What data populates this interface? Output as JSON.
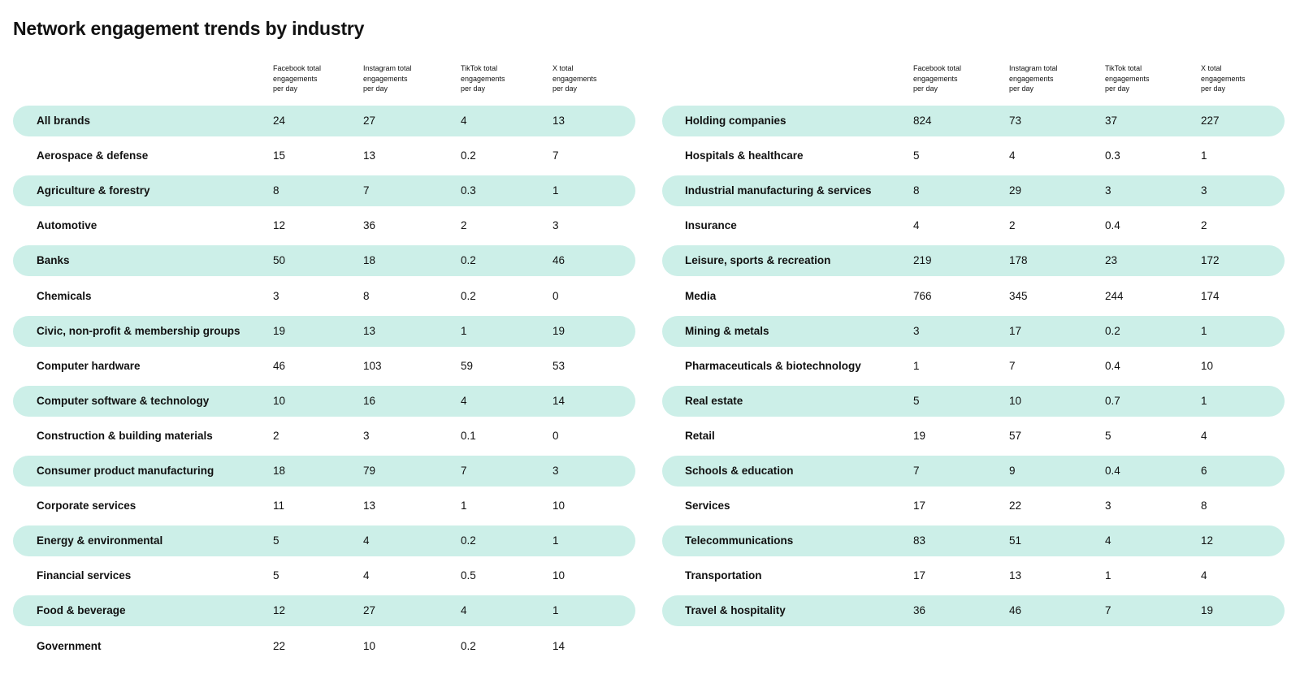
{
  "title": "Network engagement trends by industry",
  "colors": {
    "band": "#ccefe8",
    "text": "#111111"
  },
  "chart_data": [
    {
      "type": "table",
      "columns": [
        "",
        "Facebook total engagements per day",
        "Instagram total engagements per day",
        "TikTok total engagements per day",
        "X total engagements per day"
      ],
      "header_lines": [
        [
          "Facebook total",
          "engagements",
          "per day"
        ],
        [
          "Instagram total",
          "engagements",
          "per day"
        ],
        [
          "TikTok total",
          "engagements",
          "per day"
        ],
        [
          "X total",
          "engagements",
          "per day"
        ]
      ],
      "rows": [
        [
          "All brands",
          "24",
          "27",
          "4",
          "13"
        ],
        [
          "Aerospace & defense",
          "15",
          "13",
          "0.2",
          "7"
        ],
        [
          "Agriculture & forestry",
          "8",
          "7",
          "0.3",
          "1"
        ],
        [
          "Automotive",
          "12",
          "36",
          "2",
          "3"
        ],
        [
          "Banks",
          "50",
          "18",
          "0.2",
          "46"
        ],
        [
          "Chemicals",
          "3",
          "8",
          "0.2",
          "0"
        ],
        [
          "Civic, non-profit & membership groups",
          "19",
          "13",
          "1",
          "19"
        ],
        [
          "Computer hardware",
          "46",
          "103",
          "59",
          "53"
        ],
        [
          "Computer software & technology",
          "10",
          "16",
          "4",
          "14"
        ],
        [
          "Construction & building materials",
          "2",
          "3",
          "0.1",
          "0"
        ],
        [
          "Consumer product manufacturing",
          "18",
          "79",
          "7",
          "3"
        ],
        [
          "Corporate services",
          "11",
          "13",
          "1",
          "10"
        ],
        [
          "Energy & environmental",
          "5",
          "4",
          "0.2",
          "1"
        ],
        [
          "Financial services",
          "5",
          "4",
          "0.5",
          "10"
        ],
        [
          "Food & beverage",
          "12",
          "27",
          "4",
          "1"
        ],
        [
          "Government",
          "22",
          "10",
          "0.2",
          "14"
        ]
      ]
    },
    {
      "type": "table",
      "columns": [
        "",
        "Facebook total engagements per day",
        "Instagram total engagements per day",
        "TikTok total engagements per day",
        "X total engagements per day"
      ],
      "header_lines": [
        [
          "Facebook total",
          "engagements",
          "per day"
        ],
        [
          "Instagram total",
          "engagements",
          "per day"
        ],
        [
          "TikTok total",
          "engagements",
          "per day"
        ],
        [
          "X total",
          "engagements",
          "per day"
        ]
      ],
      "rows": [
        [
          "Holding companies",
          "824",
          "73",
          "37",
          "227"
        ],
        [
          "Hospitals & healthcare",
          "5",
          "4",
          "0.3",
          "1"
        ],
        [
          "Industrial manufacturing & services",
          "8",
          "29",
          "3",
          "3"
        ],
        [
          "Insurance",
          "4",
          "2",
          "0.4",
          "2"
        ],
        [
          "Leisure, sports & recreation",
          "219",
          "178",
          "23",
          "172"
        ],
        [
          "Media",
          "766",
          "345",
          "244",
          "174"
        ],
        [
          "Mining & metals",
          "3",
          "17",
          "0.2",
          "1"
        ],
        [
          "Pharmaceuticals & biotechnology",
          "1",
          "7",
          "0.4",
          "10"
        ],
        [
          "Real estate",
          "5",
          "10",
          "0.7",
          "1"
        ],
        [
          "Retail",
          "19",
          "57",
          "5",
          "4"
        ],
        [
          "Schools & education",
          "7",
          "9",
          "0.4",
          "6"
        ],
        [
          "Services",
          "17",
          "22",
          "3",
          "8"
        ],
        [
          "Telecommunications",
          "83",
          "51",
          "4",
          "12"
        ],
        [
          "Transportation",
          "17",
          "13",
          "1",
          "4"
        ],
        [
          "Travel & hospitality",
          "36",
          "46",
          "7",
          "19"
        ]
      ]
    }
  ]
}
